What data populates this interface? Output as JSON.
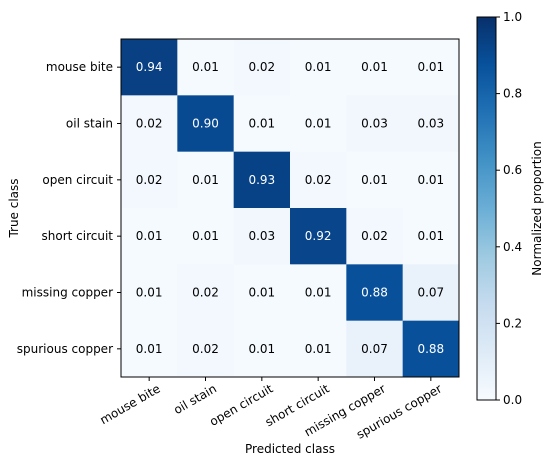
{
  "chart_data": {
    "type": "heatmap",
    "title": "",
    "xlabel": "Predicted class",
    "ylabel": "True class",
    "x_categories": [
      "mouse bite",
      "oil stain",
      "open circuit",
      "short circuit",
      "missing copper",
      "spurious copper"
    ],
    "y_categories": [
      "mouse bite",
      "oil stain",
      "open circuit",
      "short circuit",
      "missing copper",
      "spurious copper"
    ],
    "values": [
      [
        0.94,
        0.01,
        0.02,
        0.01,
        0.01,
        0.01
      ],
      [
        0.02,
        0.9,
        0.01,
        0.01,
        0.03,
        0.03
      ],
      [
        0.02,
        0.01,
        0.93,
        0.02,
        0.01,
        0.01
      ],
      [
        0.01,
        0.01,
        0.03,
        0.92,
        0.02,
        0.01
      ],
      [
        0.01,
        0.02,
        0.01,
        0.01,
        0.88,
        0.07
      ],
      [
        0.01,
        0.02,
        0.01,
        0.01,
        0.07,
        0.88
      ]
    ],
    "value_labels": [
      [
        "0.94",
        "0.01",
        "0.02",
        "0.01",
        "0.01",
        "0.01"
      ],
      [
        "0.02",
        "0.90",
        "0.01",
        "0.01",
        "0.03",
        "0.03"
      ],
      [
        "0.02",
        "0.01",
        "0.93",
        "0.02",
        "0.01",
        "0.01"
      ],
      [
        "0.01",
        "0.01",
        "0.03",
        "0.92",
        "0.02",
        "0.01"
      ],
      [
        "0.01",
        "0.02",
        "0.01",
        "0.01",
        "0.88",
        "0.07"
      ],
      [
        "0.01",
        "0.02",
        "0.01",
        "0.01",
        "0.07",
        "0.88"
      ]
    ],
    "colorbar": {
      "label": "Normalized proportion",
      "range": [
        0,
        1
      ],
      "ticks": [
        0.0,
        0.2,
        0.4,
        0.6,
        0.8,
        1.0
      ],
      "tick_labels": [
        "0.0",
        "0.2",
        "0.4",
        "0.6",
        "0.8",
        "1.0"
      ],
      "colormap": "Blues"
    }
  }
}
